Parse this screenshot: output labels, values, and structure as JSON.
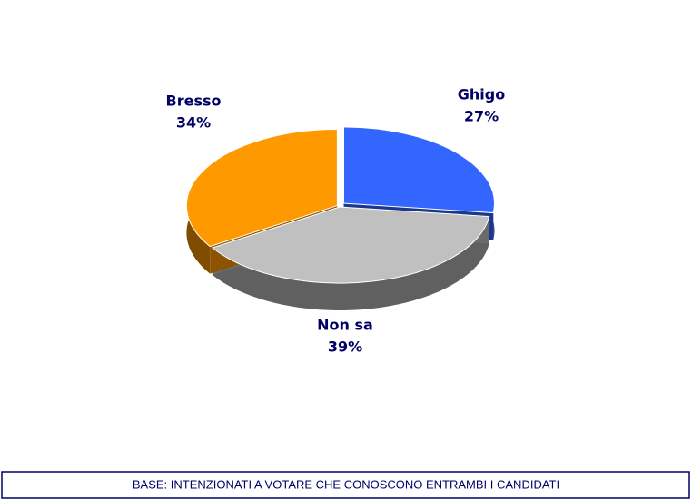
{
  "chart_data": {
    "type": "pie",
    "categories": [
      "Ghigo",
      "Non sa",
      "Bresso"
    ],
    "values": [
      27,
      39,
      34
    ],
    "value_labels": [
      "27%",
      "39%",
      "34%"
    ],
    "colors": [
      "#3366ff",
      "#c0c0c0",
      "#ff9900"
    ],
    "annotation": "BASE: INTENZIONATI A VOTARE CHE CONOSCONO ENTRAMBI I CANDIDATI"
  }
}
